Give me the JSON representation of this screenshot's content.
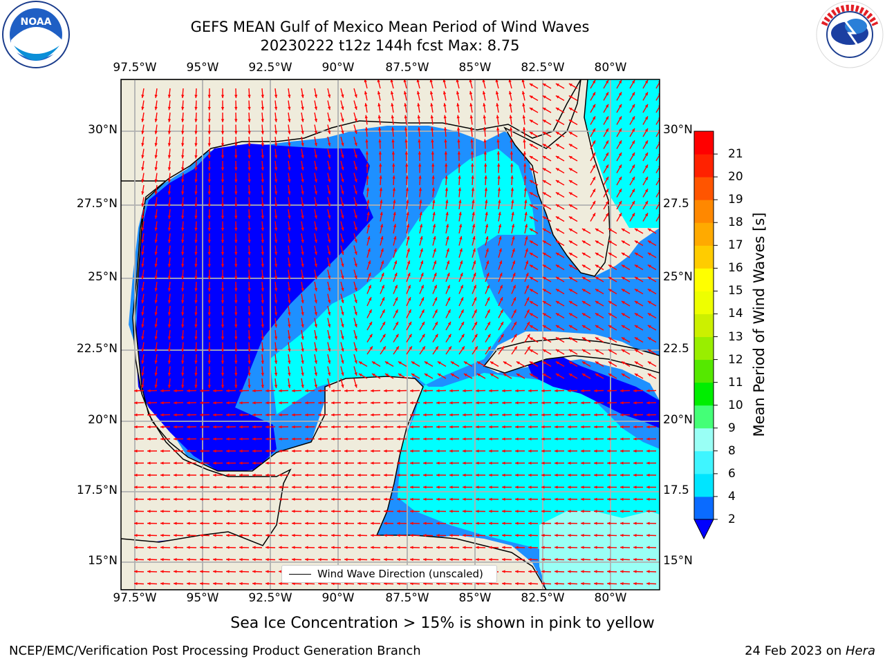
{
  "title": {
    "line1": "GEFS MEAN Gulf of Mexico Mean Period of Wind Waves",
    "line2": "20230222 t12z 144h fcst   Max: 8.75"
  },
  "map": {
    "lon_ticks": [
      "97.5°W",
      "95°W",
      "92.5°W",
      "90°W",
      "87.5°W",
      "85°W",
      "82.5°W",
      "80°W"
    ],
    "lat_ticks": [
      "30°N",
      "27.5°N",
      "25°N",
      "22.5°N",
      "20°N",
      "17.5°N",
      "15°N"
    ],
    "lat_ticks_right": [
      "30°N",
      "27.5",
      "25°N",
      "22.5",
      "20°N",
      "17.5",
      "15°N"
    ],
    "legend_label": "Wind Wave Direction (unscaled)",
    "colors": {
      "land": "#efecdc",
      "arrow": "#ff0000",
      "level_2_4": "#0000ff",
      "level_4_6": "#1e90ff",
      "level_6_8": "#00ffff"
    }
  },
  "colorbar": {
    "label": "Mean Period of Wind Waves [s]",
    "ticks": [
      "2",
      "4",
      "6",
      "8",
      "9",
      "10",
      "11",
      "12",
      "13",
      "14",
      "15",
      "16",
      "17",
      "18",
      "19",
      "20",
      "21"
    ],
    "colors": [
      "#0a6bff",
      "#00e5ff",
      "#3ff5ff",
      "#99fff5",
      "#44ff77",
      "#00ee00",
      "#55e800",
      "#99ee00",
      "#ccf000",
      "#eeff00",
      "#ffff00",
      "#ffcc00",
      "#ffaa00",
      "#ff8800",
      "#ff5500",
      "#ff2200",
      "#ff0000"
    ]
  },
  "notes": {
    "sea_ice": "Sea Ice Concentration > 15% is shown in pink to yellow"
  },
  "footer": {
    "left": "NCEP/EMC/Verification Post Processing Product Generation Branch",
    "right_date": "24 Feb 2023 on ",
    "right_host": "Hera"
  },
  "logos": {
    "left": "NOAA",
    "right": "NATIONAL WEATHER SERVICE"
  }
}
